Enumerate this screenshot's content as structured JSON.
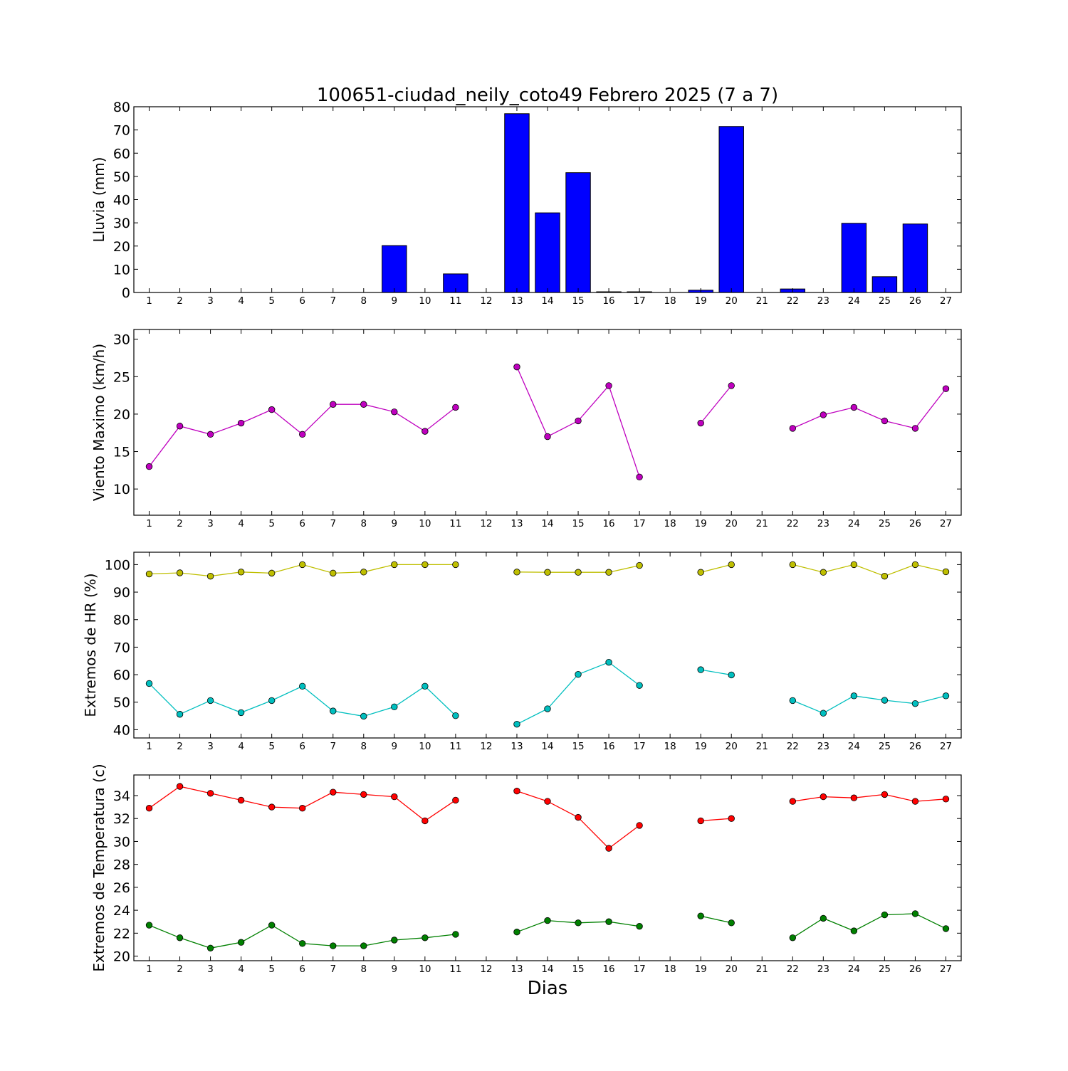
{
  "chart_data": [
    {
      "type": "bar",
      "title": "100651-ciudad_neily_coto49 Febrero 2025  (7 a 7)",
      "ylabel": "Lluvia (mm)",
      "xlabel": "",
      "ylim": [
        0,
        80
      ],
      "yticks": [
        0,
        10,
        20,
        30,
        40,
        50,
        60,
        70,
        80
      ],
      "categories": [
        1,
        2,
        3,
        4,
        5,
        6,
        7,
        8,
        9,
        10,
        11,
        12,
        13,
        14,
        15,
        16,
        17,
        18,
        19,
        20,
        21,
        22,
        23,
        24,
        25,
        26,
        27
      ],
      "series": [
        {
          "color": "#0000ff",
          "values": [
            0,
            0,
            0,
            0,
            0,
            0,
            0,
            0,
            20.2,
            0,
            8.0,
            null,
            77.0,
            34.3,
            51.6,
            0.3,
            0.3,
            null,
            1.0,
            71.5,
            null,
            1.5,
            null,
            29.8,
            6.8,
            29.5,
            null
          ]
        }
      ],
      "grid": false
    },
    {
      "type": "line",
      "title": "",
      "ylabel": "Viento Maximo (km/h)",
      "xlabel": "",
      "ylim": [
        6.5,
        31.3
      ],
      "yticks": [
        10,
        15,
        20,
        25,
        30
      ],
      "x": [
        1,
        2,
        3,
        4,
        5,
        6,
        7,
        8,
        9,
        10,
        11,
        12,
        13,
        14,
        15,
        16,
        17,
        18,
        19,
        20,
        21,
        22,
        23,
        24,
        25,
        26,
        27
      ],
      "series": [
        {
          "color": "#bf00bf",
          "values": [
            13.0,
            18.4,
            17.3,
            18.8,
            20.6,
            17.3,
            21.3,
            21.3,
            20.3,
            17.7,
            20.9,
            null,
            26.3,
            17.0,
            19.1,
            23.8,
            11.6,
            null,
            18.8,
            23.8,
            null,
            18.1,
            19.9,
            20.9,
            19.1,
            18.1,
            23.4
          ]
        }
      ],
      "grid": false
    },
    {
      "type": "line",
      "title": "",
      "ylabel": "Extremos de HR (%)",
      "xlabel": "",
      "ylim": [
        37,
        104.5
      ],
      "yticks": [
        40,
        50,
        60,
        70,
        80,
        90,
        100
      ],
      "x": [
        1,
        2,
        3,
        4,
        5,
        6,
        7,
        8,
        9,
        10,
        11,
        12,
        13,
        14,
        15,
        16,
        17,
        18,
        19,
        20,
        21,
        22,
        23,
        24,
        25,
        26,
        27
      ],
      "series": [
        {
          "color": "#bfbf00",
          "values": [
            96.6,
            97.0,
            95.8,
            97.3,
            96.9,
            100.0,
            96.9,
            97.3,
            100.0,
            100.0,
            100.0,
            null,
            97.3,
            97.2,
            97.2,
            97.2,
            99.7,
            null,
            97.2,
            100.0,
            null,
            100.0,
            97.2,
            100.0,
            95.8,
            100.0,
            97.4
          ]
        },
        {
          "color": "#00bfbf",
          "values": [
            56.8,
            45.6,
            50.6,
            46.2,
            50.6,
            55.8,
            46.8,
            44.9,
            48.3,
            55.8,
            45.1,
            null,
            42.0,
            47.6,
            60.1,
            64.5,
            56.1,
            null,
            61.8,
            59.9,
            null,
            50.6,
            46.0,
            52.3,
            50.7,
            49.5,
            52.3
          ]
        }
      ],
      "grid": false
    },
    {
      "type": "line",
      "title": "",
      "ylabel": "Extremos de Temperatura (c)",
      "xlabel": "Dias",
      "ylim": [
        19.6,
        35.8
      ],
      "yticks": [
        20,
        22,
        24,
        26,
        28,
        30,
        32,
        34
      ],
      "x": [
        1,
        2,
        3,
        4,
        5,
        6,
        7,
        8,
        9,
        10,
        11,
        12,
        13,
        14,
        15,
        16,
        17,
        18,
        19,
        20,
        21,
        22,
        23,
        24,
        25,
        26,
        27
      ],
      "series": [
        {
          "color": "#ff0000",
          "values": [
            32.9,
            34.8,
            34.2,
            33.6,
            33.0,
            32.9,
            34.3,
            34.1,
            33.9,
            31.8,
            33.6,
            null,
            34.4,
            33.5,
            32.1,
            29.4,
            31.4,
            null,
            31.8,
            32.0,
            null,
            33.5,
            33.9,
            33.8,
            34.1,
            33.5,
            33.7
          ]
        },
        {
          "color": "#008000",
          "values": [
            22.7,
            21.6,
            20.7,
            21.2,
            22.7,
            21.1,
            20.9,
            20.9,
            21.4,
            21.6,
            21.9,
            null,
            22.1,
            23.1,
            22.9,
            23.0,
            22.6,
            null,
            23.5,
            22.9,
            null,
            21.6,
            23.3,
            22.2,
            23.6,
            23.7,
            22.4
          ]
        }
      ],
      "grid": false
    }
  ]
}
